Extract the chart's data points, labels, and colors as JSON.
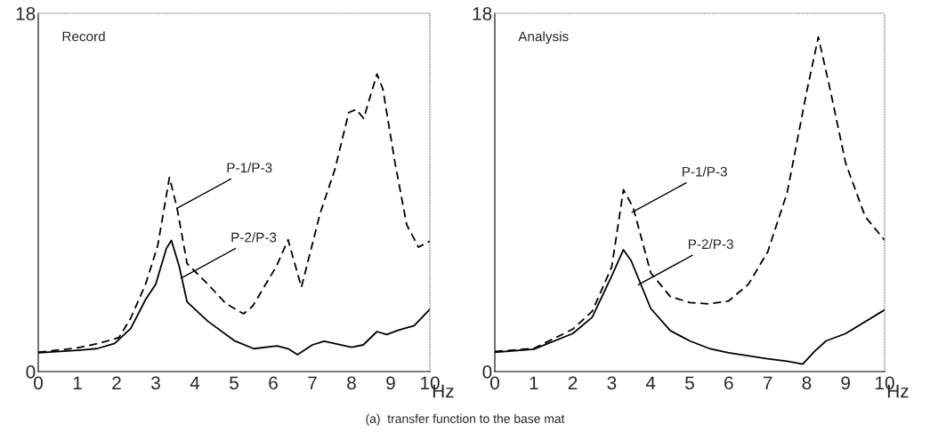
{
  "chart_data": [
    {
      "type": "line",
      "title": "Record",
      "xlabel": "Hz",
      "xlim": [
        0,
        10
      ],
      "ylim": [
        0,
        18
      ],
      "xticks": [
        0,
        1,
        2,
        3,
        4,
        5,
        6,
        7,
        8,
        9,
        10
      ],
      "yticks": [
        0,
        18
      ],
      "grid": false,
      "legend": false,
      "series": [
        {
          "color": "#000000",
          "line_style": "dashed",
          "x": [
            0,
            1.0,
            1.53,
            2.06,
            2.36,
            2.74,
            3.05,
            3.35,
            3.54,
            3.8,
            4.33,
            4.79,
            5.24,
            5.47,
            6.08,
            6.38,
            6.72,
            7.2,
            7.58,
            7.93,
            8.12,
            8.31,
            8.65,
            8.8,
            9.11,
            9.41,
            9.71,
            10
          ],
          "values": [
            0.97,
            1.19,
            1.41,
            1.71,
            2.68,
            4.39,
            6.32,
            9.75,
            8.26,
            5.43,
            4.39,
            3.42,
            2.9,
            3.27,
            5.28,
            6.62,
            4.24,
            7.96,
            10.19,
            13.02,
            13.17,
            12.72,
            14.95,
            14.2,
            10.49,
            7.37,
            6.25,
            6.55
          ]
        },
        {
          "color": "#000000",
          "line_style": "solid",
          "x": [
            0,
            1.0,
            1.5,
            1.95,
            2.36,
            2.75,
            3.0,
            3.27,
            3.4,
            3.6,
            3.8,
            4.33,
            5.0,
            5.5,
            6.1,
            6.38,
            6.62,
            7.0,
            7.3,
            8.0,
            8.3,
            8.65,
            8.9,
            9.2,
            9.6,
            10
          ],
          "values": [
            0.94,
            1.07,
            1.15,
            1.41,
            2.16,
            3.65,
            4.39,
            6.18,
            6.59,
            5.28,
            3.5,
            2.53,
            1.56,
            1.15,
            1.29,
            1.15,
            0.85,
            1.34,
            1.52,
            1.22,
            1.34,
            2.01,
            1.86,
            2.08,
            2.31,
            3.13
          ]
        }
      ],
      "annotations": [
        {
          "text": "P-1/P-3",
          "x": 3.54,
          "y": 8.2
        },
        {
          "text": "P-2/P-3",
          "x": 3.65,
          "y": 4.7
        },
        "(a)  transfer function to the base mat"
      ]
    },
    {
      "type": "line",
      "title": "Analysis",
      "xlabel": "Hz",
      "xlim": [
        0,
        10
      ],
      "ylim": [
        0,
        18
      ],
      "xticks": [
        0,
        1,
        2,
        3,
        4,
        5,
        6,
        7,
        8,
        9,
        10
      ],
      "yticks": [
        0,
        18
      ],
      "grid": false,
      "legend": false,
      "series": [
        {
          "color": "#000000",
          "line_style": "dashed",
          "x": [
            0,
            1.0,
            2.0,
            2.5,
            3.0,
            3.3,
            3.55,
            4.0,
            4.5,
            5.0,
            5.5,
            6.0,
            6.5,
            7.0,
            7.5,
            8.0,
            8.3,
            8.6,
            9.0,
            9.5,
            10
          ],
          "values": [
            1.01,
            1.16,
            2.13,
            3.03,
            5.26,
            9.14,
            8.24,
            4.96,
            3.77,
            3.47,
            3.4,
            3.55,
            4.37,
            6.01,
            8.99,
            14.05,
            16.81,
            14.2,
            10.48,
            7.79,
            6.6
          ]
        },
        {
          "color": "#000000",
          "line_style": "solid",
          "x": [
            0,
            1.0,
            2.0,
            2.5,
            3.0,
            3.3,
            3.5,
            4.0,
            4.5,
            5.0,
            5.5,
            6.0,
            7.0,
            7.5,
            7.9,
            8.2,
            8.5,
            9.0,
            10
          ],
          "values": [
            0.97,
            1.12,
            1.91,
            2.73,
            4.81,
            6.12,
            5.56,
            3.17,
            2.06,
            1.54,
            1.16,
            0.94,
            0.64,
            0.52,
            0.37,
            1.01,
            1.54,
            1.91,
            3.1
          ]
        }
      ],
      "annotations": [
        {
          "text": "P-1/P-3",
          "x": 3.52,
          "y": 8.0
        },
        {
          "text": "P-2/P-3",
          "x": 3.68,
          "y": 4.36
        }
      ]
    }
  ]
}
